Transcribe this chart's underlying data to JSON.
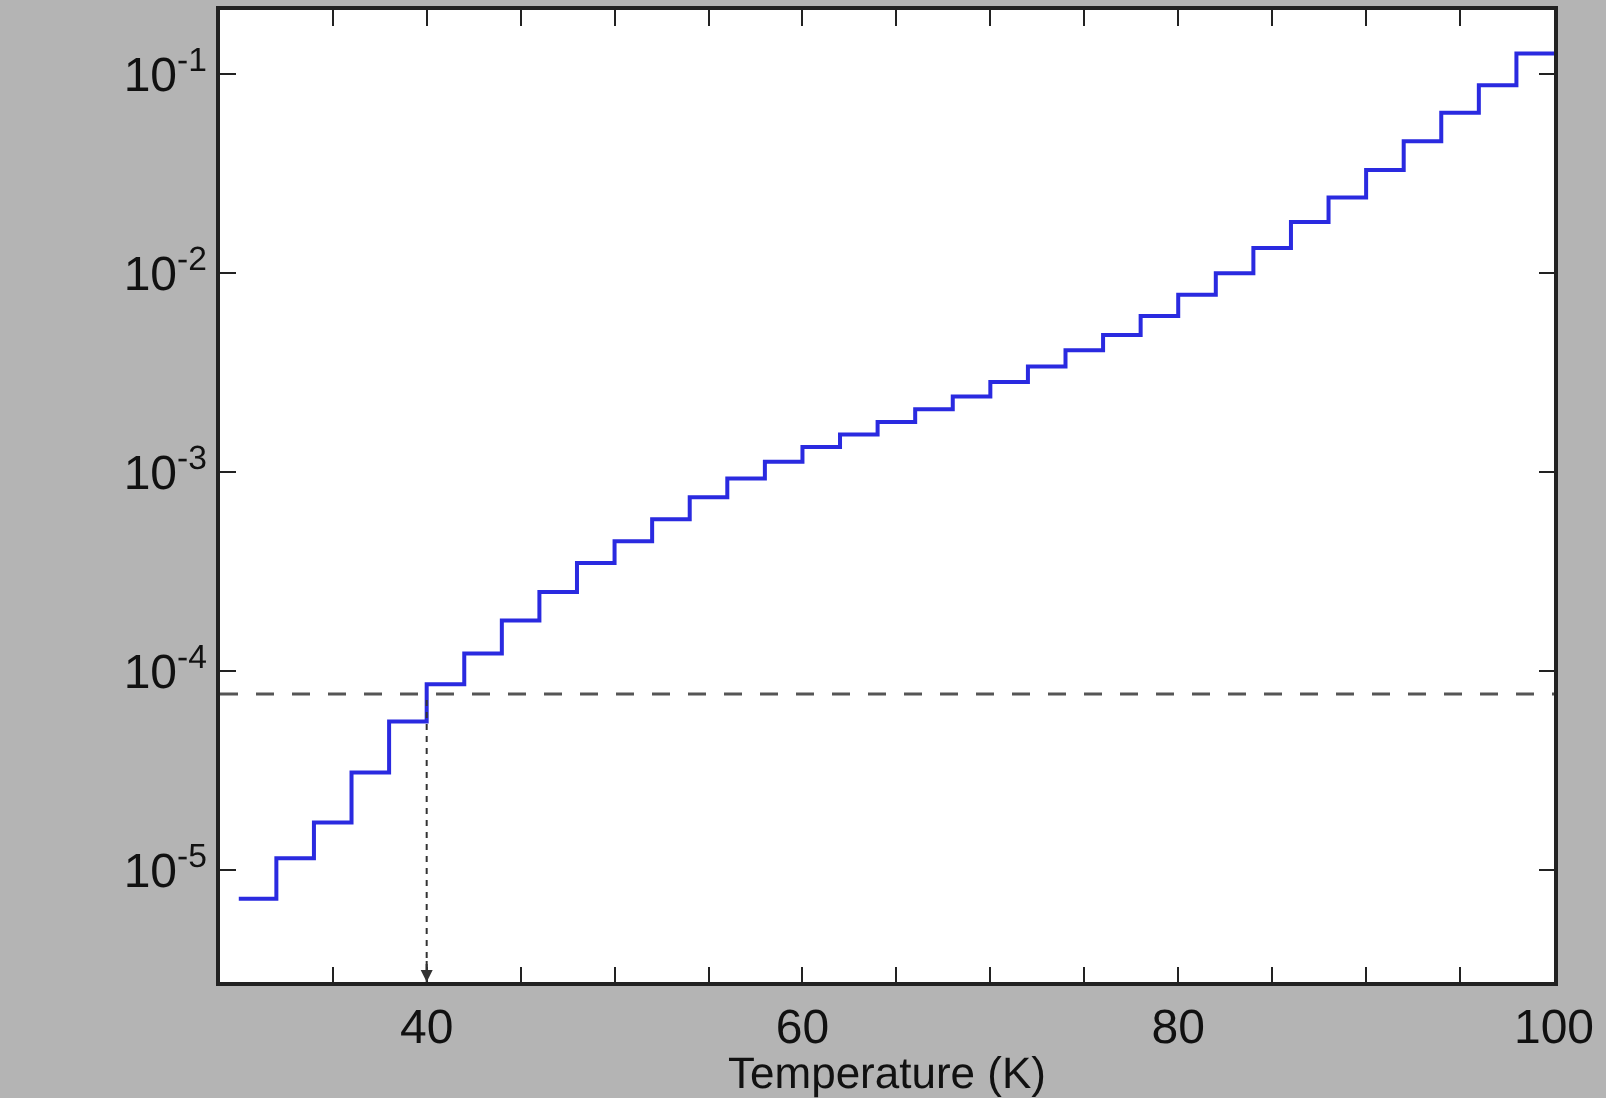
{
  "chart_data": {
    "type": "step",
    "xlabel": "Temperature (K)",
    "x": [
      30,
      32,
      34,
      36,
      38,
      40,
      42,
      44,
      46,
      48,
      50,
      52,
      54,
      56,
      58,
      60,
      62,
      64,
      66,
      68,
      70,
      72,
      74,
      76,
      78,
      80,
      82,
      84,
      86,
      88,
      90,
      92,
      94,
      96,
      98,
      100
    ],
    "series": [
      {
        "color": "#2a2ae0",
        "values": [
          7.2e-06,
          1.15e-05,
          1.74e-05,
          3.1e-05,
          5.6e-05,
          8.6e-05,
          0.000123,
          0.00018,
          0.00025,
          0.00035,
          0.00045,
          0.00058,
          0.00075,
          0.00093,
          0.00113,
          0.00134,
          0.00155,
          0.00179,
          0.00207,
          0.0024,
          0.00284,
          0.0034,
          0.0041,
          0.0049,
          0.0061,
          0.0078,
          0.01,
          0.0134,
          0.0181,
          0.024,
          0.033,
          0.046,
          0.064,
          0.088,
          0.127,
          0.127
        ]
      }
    ],
    "log": "y",
    "xlim": [
      29,
      100
    ],
    "ylim": [
      2.75e-06,
      0.21
    ],
    "xticks": [
      {
        "value": 35,
        "label": null
      },
      40,
      {
        "value": 45,
        "label": null
      },
      {
        "value": 50,
        "label": null
      },
      {
        "value": 55,
        "label": null
      },
      60,
      {
        "value": 65,
        "label": null
      },
      {
        "value": 70,
        "label": null
      },
      {
        "value": 75,
        "label": null
      },
      80,
      {
        "value": 85,
        "label": null
      },
      {
        "value": 90,
        "label": null
      },
      {
        "value": 95,
        "label": null
      },
      100
    ],
    "yticks": [
      {
        "value": 1e-05,
        "label": "10$^{-5}$"
      },
      {
        "value": 0.0001,
        "label": "10$^{-4}$"
      },
      {
        "value": 0.001,
        "label": "10$^{-3}$"
      },
      {
        "value": 0.01,
        "label": "10$^{-2}$"
      },
      {
        "value": 0.1,
        "label": "10$^{-1}$"
      }
    ],
    "ref_lines": [
      {
        "axis": "y",
        "value": 7.7e-05,
        "color": "#555555",
        "line_style": "dashed"
      },
      {
        "axis": "x",
        "value": 40,
        "color": "#333333",
        "line_style": "dotted"
      }
    ]
  }
}
